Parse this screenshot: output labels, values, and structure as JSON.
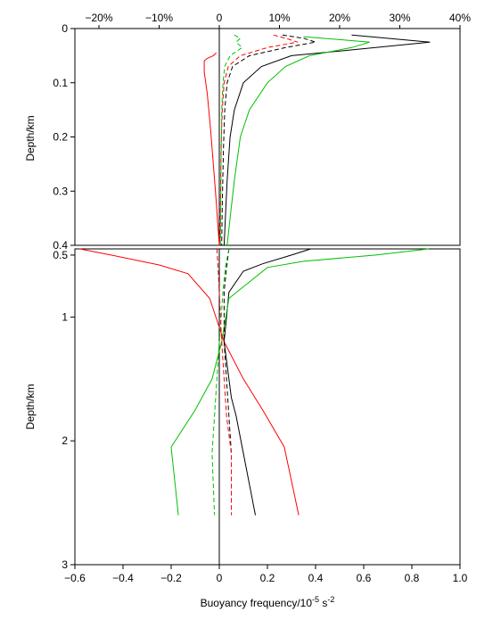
{
  "chart_data": {
    "type": "line",
    "xlabel": {
      "prefix": "Buoyancy frequency/10",
      "exp": "-5",
      "suffix": " s",
      "exp2": "-2"
    },
    "top_axis": {
      "ticks": [
        -20,
        -10,
        0,
        10,
        20,
        30,
        40
      ],
      "tick_labels": [
        "−20%",
        "−10%",
        "0",
        "10%",
        "20%",
        "30%",
        "40%"
      ],
      "xlim": [
        -24,
        40
      ]
    },
    "bottom_axis": {
      "ticks": [
        -0.6,
        -0.4,
        -0.2,
        0,
        0.2,
        0.4,
        0.6,
        0.8,
        1.0
      ],
      "tick_labels": [
        "−0.6",
        "−0.4",
        "−0.2",
        "0",
        "0.2",
        "0.4",
        "0.6",
        "0.8",
        "1.0"
      ],
      "xlim": [
        -0.6,
        1.0
      ]
    },
    "panels": [
      {
        "name": "upper",
        "ylabel": "Depth/km",
        "ylim": [
          0,
          0.4
        ],
        "yticks": [
          0,
          0.1,
          0.2,
          0.3,
          0.4
        ],
        "ytick_labels": [
          "0",
          "0.1",
          "0.2",
          "0.3",
          "0.4"
        ],
        "series": [
          {
            "color": "#000000",
            "dash": false,
            "x": [
              22,
              35,
              26,
              12,
              7,
              4,
              2.5,
              1.8,
              1.3,
              1.0,
              0.8
            ],
            "y": [
              0.012,
              0.025,
              0.035,
              0.05,
              0.07,
              0.1,
              0.15,
              0.2,
              0.28,
              0.35,
              0.4
            ]
          },
          {
            "color": "#00c000",
            "dash": false,
            "x": [
              14,
              25,
              22,
              15,
              11,
              8,
              5,
              3.5,
              2.5,
              1.8,
              1.3
            ],
            "y": [
              0.015,
              0.025,
              0.035,
              0.05,
              0.07,
              0.1,
              0.15,
              0.2,
              0.28,
              0.35,
              0.4
            ]
          },
          {
            "color": "#ff0000",
            "dash": false,
            "x": [
              -0.5,
              -1,
              -2,
              -2.5,
              -2.5,
              -2,
              -1.5,
              -1,
              -0.5,
              -0.2,
              0
            ],
            "y": [
              0.045,
              0.05,
              0.055,
              0.06,
              0.08,
              0.12,
              0.18,
              0.25,
              0.32,
              0.37,
              0.4
            ]
          },
          {
            "color": "#000000",
            "dash": true,
            "x": [
              10.5,
              14,
              16,
              11,
              5,
              2.2,
              1.3,
              0.9,
              0.7,
              0.5,
              0.4
            ],
            "y": [
              0.012,
              0.018,
              0.025,
              0.035,
              0.05,
              0.07,
              0.1,
              0.15,
              0.22,
              0.32,
              0.4
            ]
          },
          {
            "color": "#ff0000",
            "dash": true,
            "x": [
              9,
              11,
              13,
              8,
              3.5,
              1.5,
              0.8,
              0.5,
              0.3,
              0.2,
              0.1
            ],
            "y": [
              0.012,
              0.018,
              0.025,
              0.035,
              0.05,
              0.07,
              0.1,
              0.15,
              0.22,
              0.32,
              0.4
            ]
          },
          {
            "color": "#00c000",
            "dash": true,
            "x": [
              2.5,
              3.5,
              2.8,
              3.8,
              1.8,
              0.9,
              0.6,
              0.4,
              0.3,
              0.2
            ],
            "y": [
              0.012,
              0.018,
              0.025,
              0.035,
              0.05,
              0.07,
              0.1,
              0.15,
              0.25,
              0.4
            ]
          }
        ]
      },
      {
        "name": "lower",
        "ylabel": "Depth/km",
        "ylim": [
          0.45,
          3
        ],
        "yticks": [
          0.5,
          1,
          2,
          3
        ],
        "ytick_labels": [
          "0.5",
          "1",
          "2",
          "3"
        ],
        "series": [
          {
            "color": "#000000",
            "dash": false,
            "x": [
              0.38,
              0.3,
              0.18,
              0.1,
              0.04,
              0.03,
              0.02,
              0.04,
              0.05,
              0.07,
              0.1,
              0.13,
              0.15
            ],
            "y": [
              0.45,
              0.5,
              0.57,
              0.63,
              0.8,
              1.0,
              1.2,
              1.5,
              1.65,
              1.8,
              2.1,
              2.4,
              2.6
            ]
          },
          {
            "color": "#00c000",
            "dash": false,
            "x": [
              0.87,
              0.65,
              0.35,
              0.2,
              0.04,
              0.01,
              -0.03,
              -0.1,
              -0.2,
              -0.17
            ],
            "y": [
              0.45,
              0.5,
              0.55,
              0.6,
              0.85,
              1.2,
              1.5,
              1.75,
              2.05,
              2.6
            ]
          },
          {
            "color": "#ff0000",
            "dash": false,
            "x": [
              -0.58,
              -0.45,
              -0.25,
              -0.13,
              -0.04,
              0.02,
              0.1,
              0.18,
              0.27,
              0.33
            ],
            "y": [
              0.45,
              0.5,
              0.58,
              0.65,
              0.85,
              1.2,
              1.5,
              1.75,
              2.05,
              2.6
            ]
          },
          {
            "color": "#000000",
            "dash": true,
            "x": [
              0.04,
              0.03,
              0.02,
              0.02,
              0.02,
              0.03,
              0.04,
              0.05,
              0.05
            ],
            "y": [
              0.45,
              0.6,
              0.8,
              1.0,
              1.2,
              1.5,
              1.8,
              2.1,
              2.6
            ]
          },
          {
            "color": "#00c000",
            "dash": true,
            "x": [
              0.04,
              0.025,
              0.015,
              0.008,
              0.0,
              -0.01,
              -0.02,
              -0.03,
              -0.02
            ],
            "y": [
              0.45,
              0.6,
              0.8,
              1.0,
              1.2,
              1.5,
              1.8,
              2.1,
              2.6
            ]
          },
          {
            "color": "#ff0000",
            "dash": true,
            "x": [
              -0.01,
              -0.005,
              0.0,
              0.005,
              0.01,
              0.02,
              0.03,
              0.05,
              0.05
            ],
            "y": [
              0.45,
              0.6,
              0.8,
              1.0,
              1.2,
              1.5,
              1.8,
              2.1,
              2.6
            ]
          }
        ]
      }
    ]
  }
}
